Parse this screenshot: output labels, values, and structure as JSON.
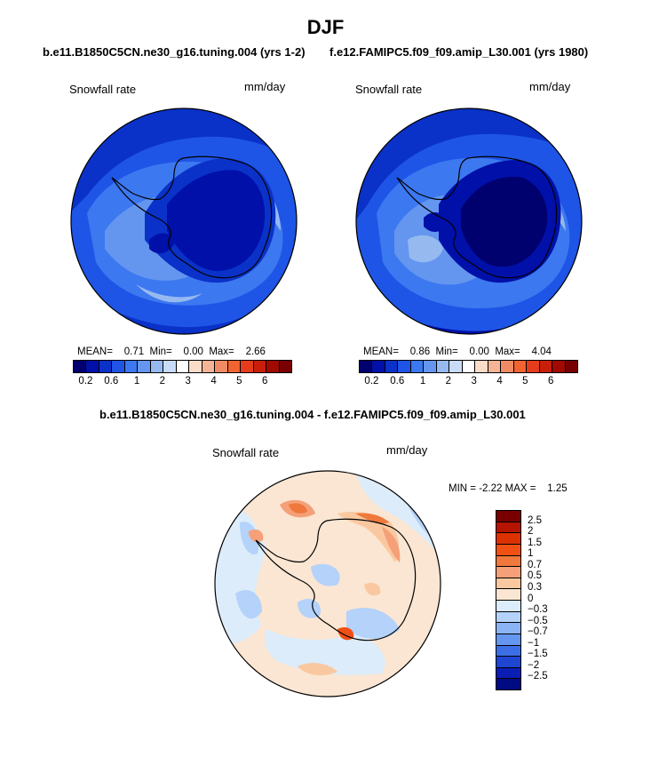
{
  "title": "DJF",
  "subtitle_left": "b.e11.B1850C5CN.ne30_g16.tuning.004 (yrs 1-2)",
  "subtitle_right": "f.e12.FAMIPC5.f09_f09.amip_L30.001 (yrs 1980)",
  "diff_title": "b.e11.B1850C5CN.ne30_g16.tuning.004 - f.e12.FAMIPC5.f09_f09.amip_L30.001",
  "panels": [
    {
      "field": "Snowfall rate",
      "units": "mm/day",
      "mean_label": "MEAN=",
      "mean": "0.71",
      "min_label": "Min=",
      "min": "0.00",
      "max_label": "Max=",
      "max": "2.66"
    },
    {
      "field": "Snowfall rate",
      "units": "mm/day",
      "mean_label": "MEAN=",
      "mean": "0.86",
      "min_label": "Min=",
      "min": "0.00",
      "max_label": "Max=",
      "max": "4.04"
    }
  ],
  "diff_panel": {
    "field": "Snowfall rate",
    "units": "mm/day",
    "min_label": "MIN =",
    "min": "-2.22",
    "max_label": "MAX =",
    "max": "1.25"
  },
  "colorbar": {
    "colors": [
      "#00006e",
      "#0010a8",
      "#0a32c8",
      "#1e55e6",
      "#3c78f0",
      "#6496f0",
      "#96b9f0",
      "#c8dcf8",
      "#ffffff",
      "#fadcc8",
      "#f5b496",
      "#f08c64",
      "#f06432",
      "#e63c1e",
      "#c81e0a",
      "#a00a00",
      "#780000"
    ],
    "ticks": [
      "0.2",
      "0.6",
      "1",
      "2",
      "3",
      "4",
      "5",
      "6"
    ]
  },
  "diff_colorbar": {
    "colors": [
      "#780000",
      "#b41400",
      "#dc3200",
      "#f05014",
      "#f0783c",
      "#f5a078",
      "#fac8a0",
      "#fae6d2",
      "#dcecfa",
      "#b4d2fa",
      "#8cb4f5",
      "#6496f0",
      "#3c6ee6",
      "#1e46d2",
      "#0a1eb4",
      "#000a82"
    ],
    "ticks": [
      "2.5",
      "2",
      "1.5",
      "1",
      "0.7",
      "0.5",
      "0.3",
      "0",
      "−0.3",
      "−0.5",
      "−0.7",
      "−1",
      "−1.5",
      "−2",
      "−2.5"
    ]
  }
}
